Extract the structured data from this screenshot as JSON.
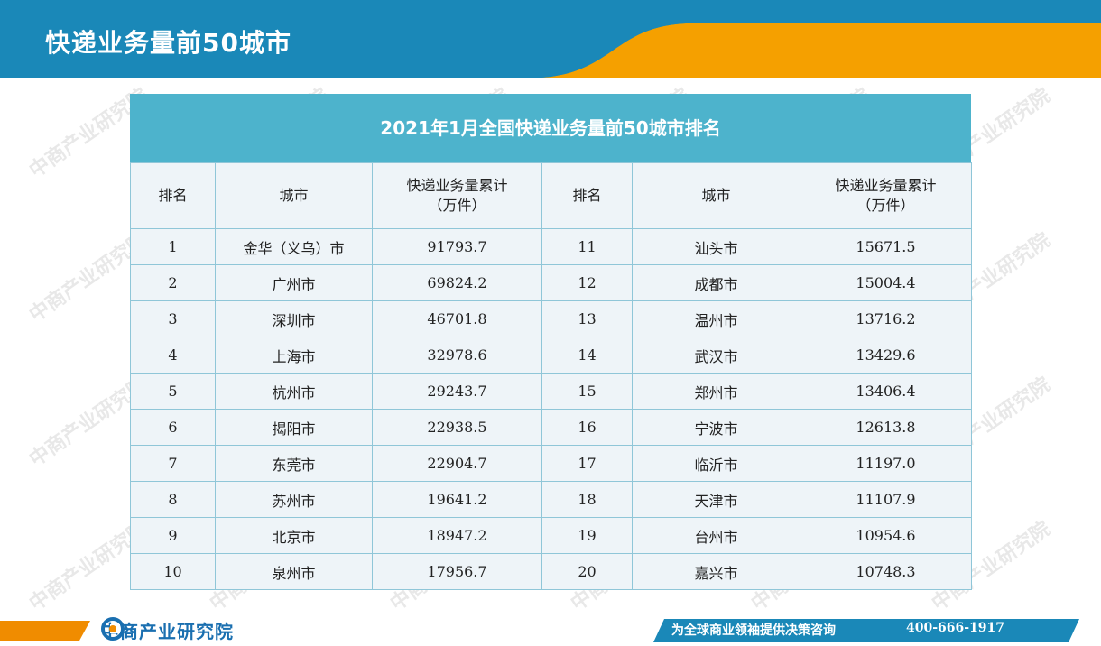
{
  "header": {
    "title": "快递业务量前50城市"
  },
  "table": {
    "title": "2021年1月全国快递业务量前50城市排名",
    "columns": [
      {
        "line1": "排名",
        "line2": ""
      },
      {
        "line1": "城市",
        "line2": ""
      },
      {
        "line1": "快递业务量累计",
        "line2": "（万件）"
      },
      {
        "line1": "排名",
        "line2": ""
      },
      {
        "line1": "城市",
        "line2": ""
      },
      {
        "line1": "快递业务量累计",
        "line2": "（万件）"
      }
    ],
    "rows": [
      [
        "1",
        "金华（义乌）市",
        "91793.7",
        "11",
        "汕头市",
        "15671.5"
      ],
      [
        "2",
        "广州市",
        "69824.2",
        "12",
        "成都市",
        "15004.4"
      ],
      [
        "3",
        "深圳市",
        "46701.8",
        "13",
        "温州市",
        "13716.2"
      ],
      [
        "4",
        "上海市",
        "32978.6",
        "14",
        "武汉市",
        "13429.6"
      ],
      [
        "5",
        "杭州市",
        "29243.7",
        "15",
        "郑州市",
        "13406.4"
      ],
      [
        "6",
        "揭阳市",
        "22938.5",
        "16",
        "宁波市",
        "12613.8"
      ],
      [
        "7",
        "东莞市",
        "22904.7",
        "17",
        "临沂市",
        "11197.0"
      ],
      [
        "8",
        "苏州市",
        "19641.2",
        "18",
        "天津市",
        "11107.9"
      ],
      [
        "9",
        "北京市",
        "18947.2",
        "19",
        "台州市",
        "10954.6"
      ],
      [
        "10",
        "泉州市",
        "17956.7",
        "20",
        "嘉兴市",
        "10748.3"
      ]
    ]
  },
  "watermark": {
    "text": "中商产业研究院"
  },
  "footer": {
    "logo_text": "中商产业研究院",
    "slogan": "为全球商业领袖提供决策咨询",
    "phone": "400-666-1917"
  },
  "colors": {
    "header_blue": "#1a88b8",
    "header_orange": "#f5a000",
    "table_title_bg": "#4db3cc",
    "table_body_bg": "#eef4f8",
    "footer_blue": "#1a88b8",
    "footer_orange": "#f08c00"
  },
  "icons": {
    "logo": "company-logo-icon"
  }
}
